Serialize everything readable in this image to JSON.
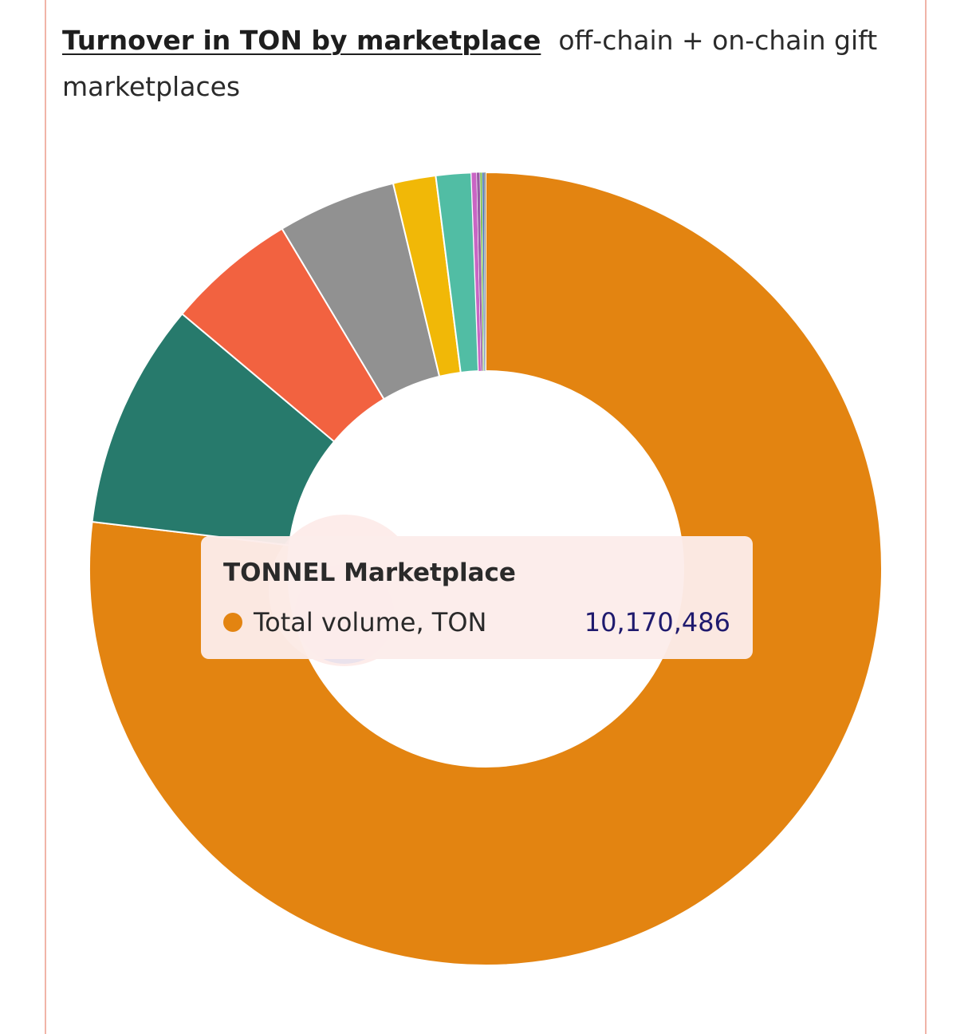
{
  "header": {
    "title": "Turnover in TON by marketplace",
    "subtitle": "off-chain + on-chain gift marketplaces"
  },
  "chart_data": {
    "type": "pie",
    "title": "Turnover in TON by marketplace",
    "subtitle": "off-chain + on-chain gift marketplaces",
    "series_name": "Total volume, TON",
    "slices": [
      {
        "name": "TONNEL Marketplace",
        "value": 10170486,
        "color": "#e38411"
      },
      {
        "name": "",
        "value": 1220000,
        "color": "#277a6c"
      },
      {
        "name": "",
        "value": 700000,
        "color": "#f26240"
      },
      {
        "name": "",
        "value": 640000,
        "color": "#919191"
      },
      {
        "name": "",
        "value": 230000,
        "color": "#f1b807"
      },
      {
        "name": "",
        "value": 190000,
        "color": "#51bda4"
      },
      {
        "name": "",
        "value": 28000,
        "color": "#c965c4"
      },
      {
        "name": "",
        "value": 18000,
        "color": "#9a5ba6"
      },
      {
        "name": "",
        "value": 12000,
        "color": "#79bd4e"
      },
      {
        "name": "",
        "value": 10000,
        "color": "#3f6bb8"
      },
      {
        "name": "",
        "value": 8000,
        "color": "#555555"
      }
    ],
    "highlighted_slice": "TONNEL Marketplace",
    "legend": "none"
  },
  "tooltip": {
    "title": "TONNEL Marketplace",
    "label": "Total volume, TON",
    "value": "10,170,486",
    "dot_color": "#e38411"
  }
}
